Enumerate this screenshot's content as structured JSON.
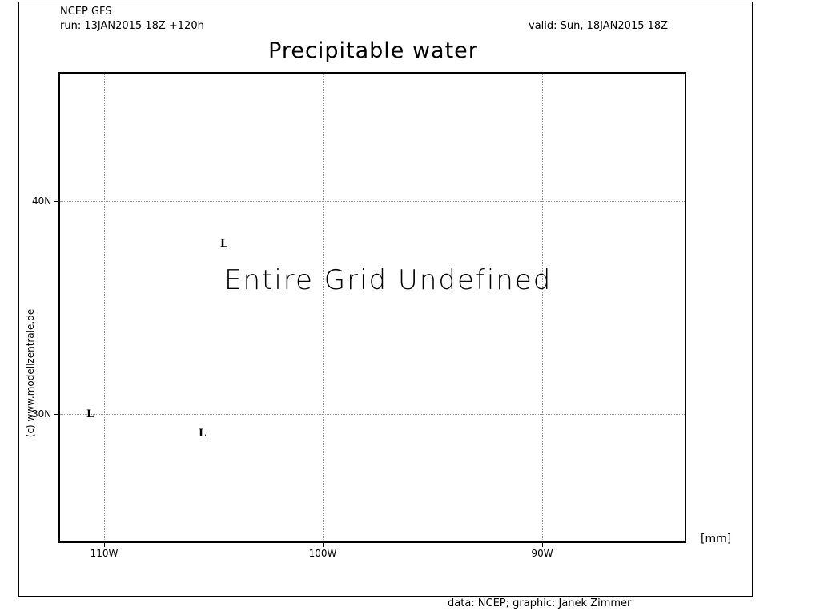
{
  "header": {
    "model": "NCEP GFS",
    "run": "run: 13JAN2015 18Z +120h",
    "valid": "valid: Sun, 18JAN2015 18Z"
  },
  "title": "Precipitable water",
  "map": {
    "lon_range": [
      -112,
      -83.5
    ],
    "lat_range": [
      24,
      46
    ],
    "lon_ticks": [
      {
        "value": -110,
        "label": "110W"
      },
      {
        "value": -100,
        "label": "100W"
      },
      {
        "value": -90,
        "label": "90W"
      }
    ],
    "lat_ticks": [
      {
        "value": 40,
        "label": "40N"
      },
      {
        "value": 30,
        "label": "30N"
      }
    ],
    "gridlines": true,
    "message": "Entire Grid Undefined",
    "pressure_centers": [
      {
        "label": "L",
        "lon": -104.5,
        "lat": 38.0
      },
      {
        "label": "L",
        "lon": -110.6,
        "lat": 30.0
      },
      {
        "label": "L",
        "lon": -105.5,
        "lat": 29.1
      }
    ]
  },
  "unit": "[mm]",
  "copyright": "(c) www.modellzentrale.de",
  "credit": "data: NCEP; graphic: Janek Zimmer"
}
